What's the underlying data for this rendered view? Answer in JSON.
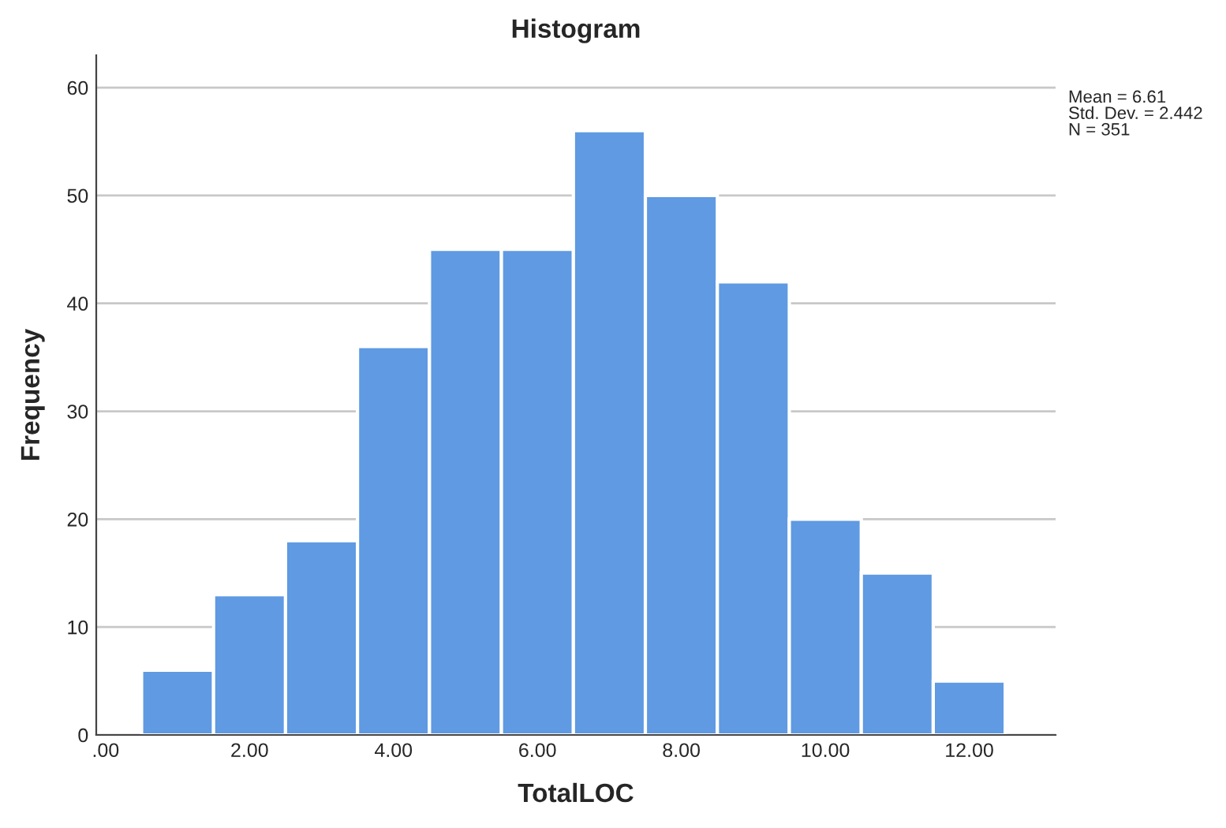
{
  "chart_data": {
    "type": "histogram",
    "title": "Histogram",
    "xlabel": "TotalLOC",
    "ylabel": "Frequency",
    "bins": [
      0.5,
      1.5,
      2.5,
      3.5,
      4.5,
      5.5,
      6.5,
      7.5,
      8.5,
      9.5,
      10.5,
      11.5,
      12.5
    ],
    "values": [
      6,
      13,
      18,
      36,
      45,
      45,
      56,
      50,
      42,
      20,
      15,
      5
    ],
    "color": "#5f9ae2",
    "xlim": [
      -0.13,
      13.2
    ],
    "ylim": [
      0,
      63
    ],
    "xticks": [
      {
        "value": 0,
        "label": ".00"
      },
      {
        "value": 2,
        "label": "2.00"
      },
      {
        "value": 4,
        "label": "4.00"
      },
      {
        "value": 6,
        "label": "6.00"
      },
      {
        "value": 8,
        "label": "8.00"
      },
      {
        "value": 10,
        "label": "10.00"
      },
      {
        "value": 12,
        "label": "12.00"
      }
    ],
    "yticks": [
      0,
      10,
      20,
      30,
      40,
      50,
      60
    ],
    "grid": "y",
    "annotations": [
      "Mean = 6.61\nStd. Dev. = 2.442\nN = 351"
    ]
  }
}
